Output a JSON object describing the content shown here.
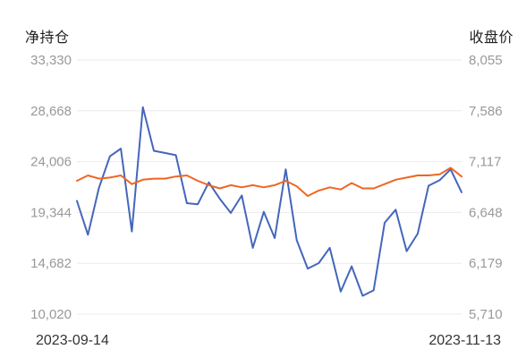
{
  "axes": {
    "left_title": "净持仓",
    "right_title": "收盘价"
  },
  "chart_data": {
    "type": "line",
    "x_start_label": "2023-09-14",
    "x_end_label": "2023-11-13",
    "left_axis": {
      "ticks": [
        "33,330",
        "28,668",
        "24,006",
        "19,344",
        "14,682",
        "10,020"
      ],
      "ylim": [
        10020,
        33330
      ]
    },
    "right_axis": {
      "ticks": [
        "8,055",
        "7,586",
        "7,117",
        "6,648",
        "6,179",
        "5,710"
      ],
      "ylim": [
        5710,
        8055
      ]
    },
    "grid": true,
    "series": [
      {
        "axis": "left",
        "color": "#4466bb",
        "values": [
          20400,
          17300,
          21600,
          24500,
          25200,
          17600,
          29000,
          25000,
          24800,
          24600,
          20200,
          20100,
          22100,
          20600,
          19300,
          20900,
          16100,
          19400,
          17000,
          23300,
          16800,
          14200,
          14700,
          16100,
          12100,
          14400,
          11700,
          12200,
          18400,
          19600,
          15800,
          17400,
          21800,
          22300,
          23300,
          21200
        ]
      },
      {
        "axis": "right",
        "color": "#ee6622",
        "values": [
          6940,
          6990,
          6960,
          6970,
          6990,
          6910,
          6950,
          6960,
          6960,
          6980,
          6990,
          6940,
          6900,
          6870,
          6900,
          6880,
          6900,
          6880,
          6900,
          6940,
          6890,
          6800,
          6850,
          6880,
          6860,
          6920,
          6870,
          6870,
          6910,
          6950,
          6970,
          6990,
          6990,
          7000,
          7060,
          6980
        ]
      }
    ]
  }
}
